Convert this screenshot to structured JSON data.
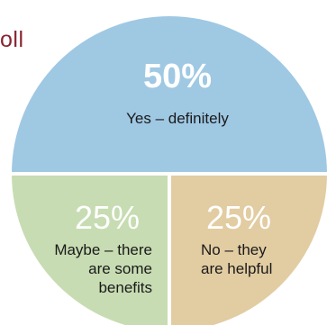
{
  "heading": "oll",
  "chart_data": {
    "type": "pie",
    "title": "",
    "slices": [
      {
        "percent_label": "50%",
        "label_lines": [
          "Yes – definitely"
        ],
        "value": 50,
        "color": "#9fc8e3"
      },
      {
        "percent_label": "25%",
        "label_lines": [
          "No – they",
          "are helpful"
        ],
        "value": 25,
        "color": "#e2cca2"
      },
      {
        "percent_label": "25%",
        "label_lines": [
          "Maybe – there",
          "are some",
          "benefits"
        ],
        "value": 25,
        "color": "#c7dcb2"
      }
    ],
    "legend": "none",
    "start_angle": "left-horizontal"
  }
}
